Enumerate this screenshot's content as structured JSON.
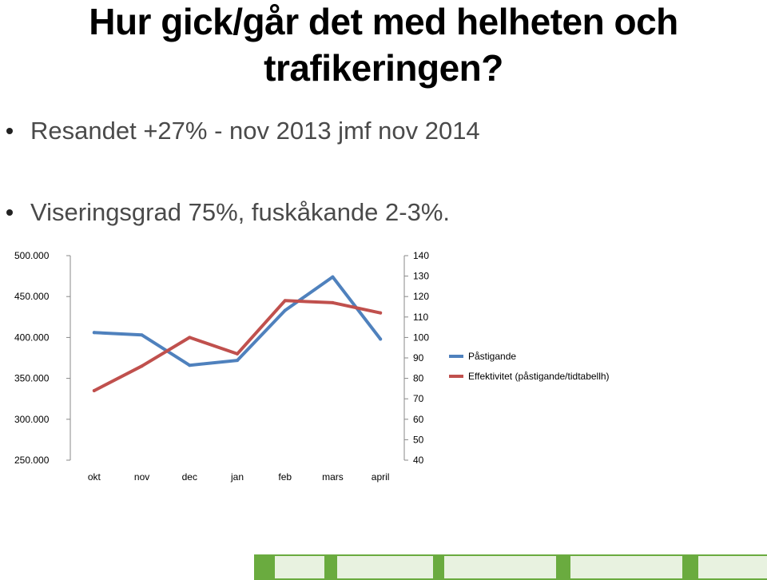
{
  "title": "Hur gick/går det med helheten och trafikeringen?",
  "bullets": [
    "Resandet +27% - nov 2013 jmf nov 2014",
    "Viseringsgrad 75%, fuskåkande 2-3%."
  ],
  "colors": {
    "series1": "#4F81BD",
    "series2": "#C0504D",
    "train_green": "#6aab3f"
  },
  "chart_data": {
    "type": "line",
    "categories": [
      "okt",
      "nov",
      "dec",
      "jan",
      "feb",
      "mars",
      "april"
    ],
    "y_left": {
      "ylim": [
        250000,
        500000
      ],
      "ticks": [
        "250.000",
        "300.000",
        "350.000",
        "400.000",
        "450.000",
        "500.000"
      ]
    },
    "y_right": {
      "ylim": [
        40,
        140
      ],
      "ticks": [
        "40",
        "50",
        "60",
        "70",
        "80",
        "90",
        "100",
        "110",
        "120",
        "130",
        "140"
      ]
    },
    "grid": false,
    "legend": "right",
    "series": [
      {
        "name": "Påstigande",
        "axis": "left",
        "color": "#4F81BD",
        "values": [
          406000,
          403000,
          366000,
          372000,
          433000,
          474000,
          398000
        ]
      },
      {
        "name": "Effektivitet (påstigande/tidtabellh)",
        "axis": "right",
        "color": "#C0504D",
        "values": [
          74,
          86,
          100,
          92,
          118,
          117,
          112
        ]
      }
    ]
  }
}
